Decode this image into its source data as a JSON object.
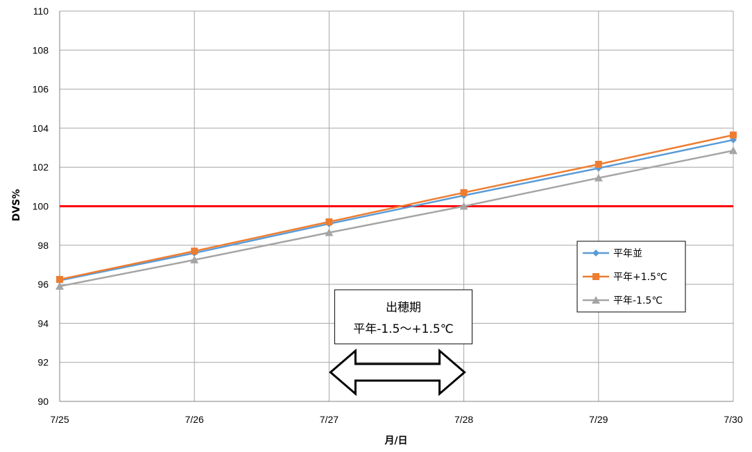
{
  "chart_data": {
    "type": "line",
    "title": "",
    "xlabel": "月/日",
    "ylabel": "DVS%",
    "categories": [
      "7/25",
      "7/26",
      "7/27",
      "7/28",
      "7/29",
      "7/30"
    ],
    "ylim": [
      90,
      110
    ],
    "yticks": [
      90,
      92,
      94,
      96,
      98,
      100,
      102,
      104,
      106,
      108,
      110
    ],
    "grid": true,
    "legend_position": "right",
    "series": [
      {
        "name": "平年並",
        "values": [
          96.2,
          97.6,
          99.1,
          100.55,
          101.95,
          103.4
        ],
        "color": "#5B9BD5",
        "marker": "diamond"
      },
      {
        "name": "平年+1.5℃",
        "values": [
          96.25,
          97.7,
          99.2,
          100.7,
          102.15,
          103.65
        ],
        "color": "#ED7D31",
        "marker": "square"
      },
      {
        "name": "平年-1.5℃",
        "values": [
          95.9,
          97.25,
          98.65,
          100.0,
          101.45,
          102.85
        ],
        "color": "#A5A5A5",
        "marker": "triangle"
      }
    ],
    "reference_line": {
      "y": 100,
      "color": "#FF0000"
    },
    "annotation": {
      "lines": [
        "出穂期",
        "平年-1.5～+1.5℃"
      ],
      "arrow_from": "7/27",
      "arrow_to": "7/28"
    }
  }
}
